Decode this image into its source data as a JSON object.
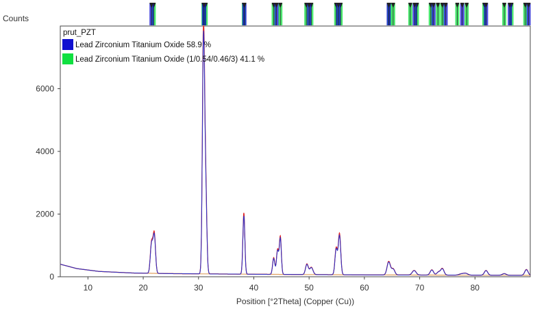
{
  "chart_data": {
    "type": "line",
    "ylabel": "Counts",
    "xlabel": "Position [°2Theta] (Copper (Cu))",
    "xlim": [
      5,
      90
    ],
    "ylim": [
      0,
      8000
    ],
    "x_ticks": [
      10,
      20,
      30,
      40,
      50,
      60,
      70,
      80
    ],
    "y_ticks": [
      0,
      2000,
      4000,
      6000
    ],
    "legend": {
      "title": "prut_PZT",
      "placement": "top-left",
      "entries": [
        {
          "label": "Lead Zirconium Titanium Oxide 58.9 %",
          "color": "#1010d0"
        },
        {
          "label": "Lead Zirconium Titanium Oxide (1/0.54/0.46/3) 41.1 %",
          "color": "#10e040"
        }
      ]
    },
    "colors": {
      "observed": "#e02020",
      "calculated": "#3030c0",
      "background": "#e0a060"
    },
    "background_curve": [
      [
        5,
        400
      ],
      [
        8,
        260
      ],
      [
        12,
        170
      ],
      [
        18,
        120
      ],
      [
        25,
        100
      ],
      [
        40,
        80
      ],
      [
        60,
        60
      ],
      [
        80,
        50
      ],
      [
        90,
        45
      ]
    ],
    "peaks": [
      {
        "x": 21.5,
        "y": 1050,
        "w": 0.22
      },
      {
        "x": 22.0,
        "y": 1350,
        "w": 0.22
      },
      {
        "x": 30.9,
        "y": 7700,
        "w": 0.2
      },
      {
        "x": 31.3,
        "y": 2700,
        "w": 0.2
      },
      {
        "x": 38.2,
        "y": 2000,
        "w": 0.18
      },
      {
        "x": 43.6,
        "y": 600,
        "w": 0.2
      },
      {
        "x": 44.3,
        "y": 850,
        "w": 0.2
      },
      {
        "x": 44.8,
        "y": 1250,
        "w": 0.18
      },
      {
        "x": 49.6,
        "y": 400,
        "w": 0.25
      },
      {
        "x": 50.4,
        "y": 300,
        "w": 0.3
      },
      {
        "x": 54.9,
        "y": 900,
        "w": 0.22
      },
      {
        "x": 55.5,
        "y": 1350,
        "w": 0.22
      },
      {
        "x": 64.4,
        "y": 480,
        "w": 0.3
      },
      {
        "x": 65.2,
        "y": 250,
        "w": 0.3
      },
      {
        "x": 69.0,
        "y": 200,
        "w": 0.35
      },
      {
        "x": 72.2,
        "y": 220,
        "w": 0.3
      },
      {
        "x": 73.4,
        "y": 150,
        "w": 0.3
      },
      {
        "x": 74.1,
        "y": 260,
        "w": 0.3
      },
      {
        "x": 77.5,
        "y": 90,
        "w": 0.4
      },
      {
        "x": 78.3,
        "y": 110,
        "w": 0.4
      },
      {
        "x": 82.0,
        "y": 200,
        "w": 0.3
      },
      {
        "x": 85.3,
        "y": 100,
        "w": 0.35
      },
      {
        "x": 89.3,
        "y": 230,
        "w": 0.3
      }
    ],
    "reference_phase_1": [
      21.5,
      31.0,
      38.3,
      44.1,
      50.0,
      55.3,
      64.4,
      69.1,
      72.5,
      74.7,
      77.7,
      82.0,
      86.3,
      89.7
    ],
    "reference_phase_2": [
      21.9,
      30.9,
      31.3,
      38.2,
      43.6,
      44.8,
      49.5,
      50.4,
      54.9,
      55.7,
      64.5,
      65.2,
      68.3,
      69.5,
      72.0,
      73.3,
      74.1,
      76.8,
      78.5,
      81.7,
      85.3,
      86.6,
      89.1
    ]
  }
}
